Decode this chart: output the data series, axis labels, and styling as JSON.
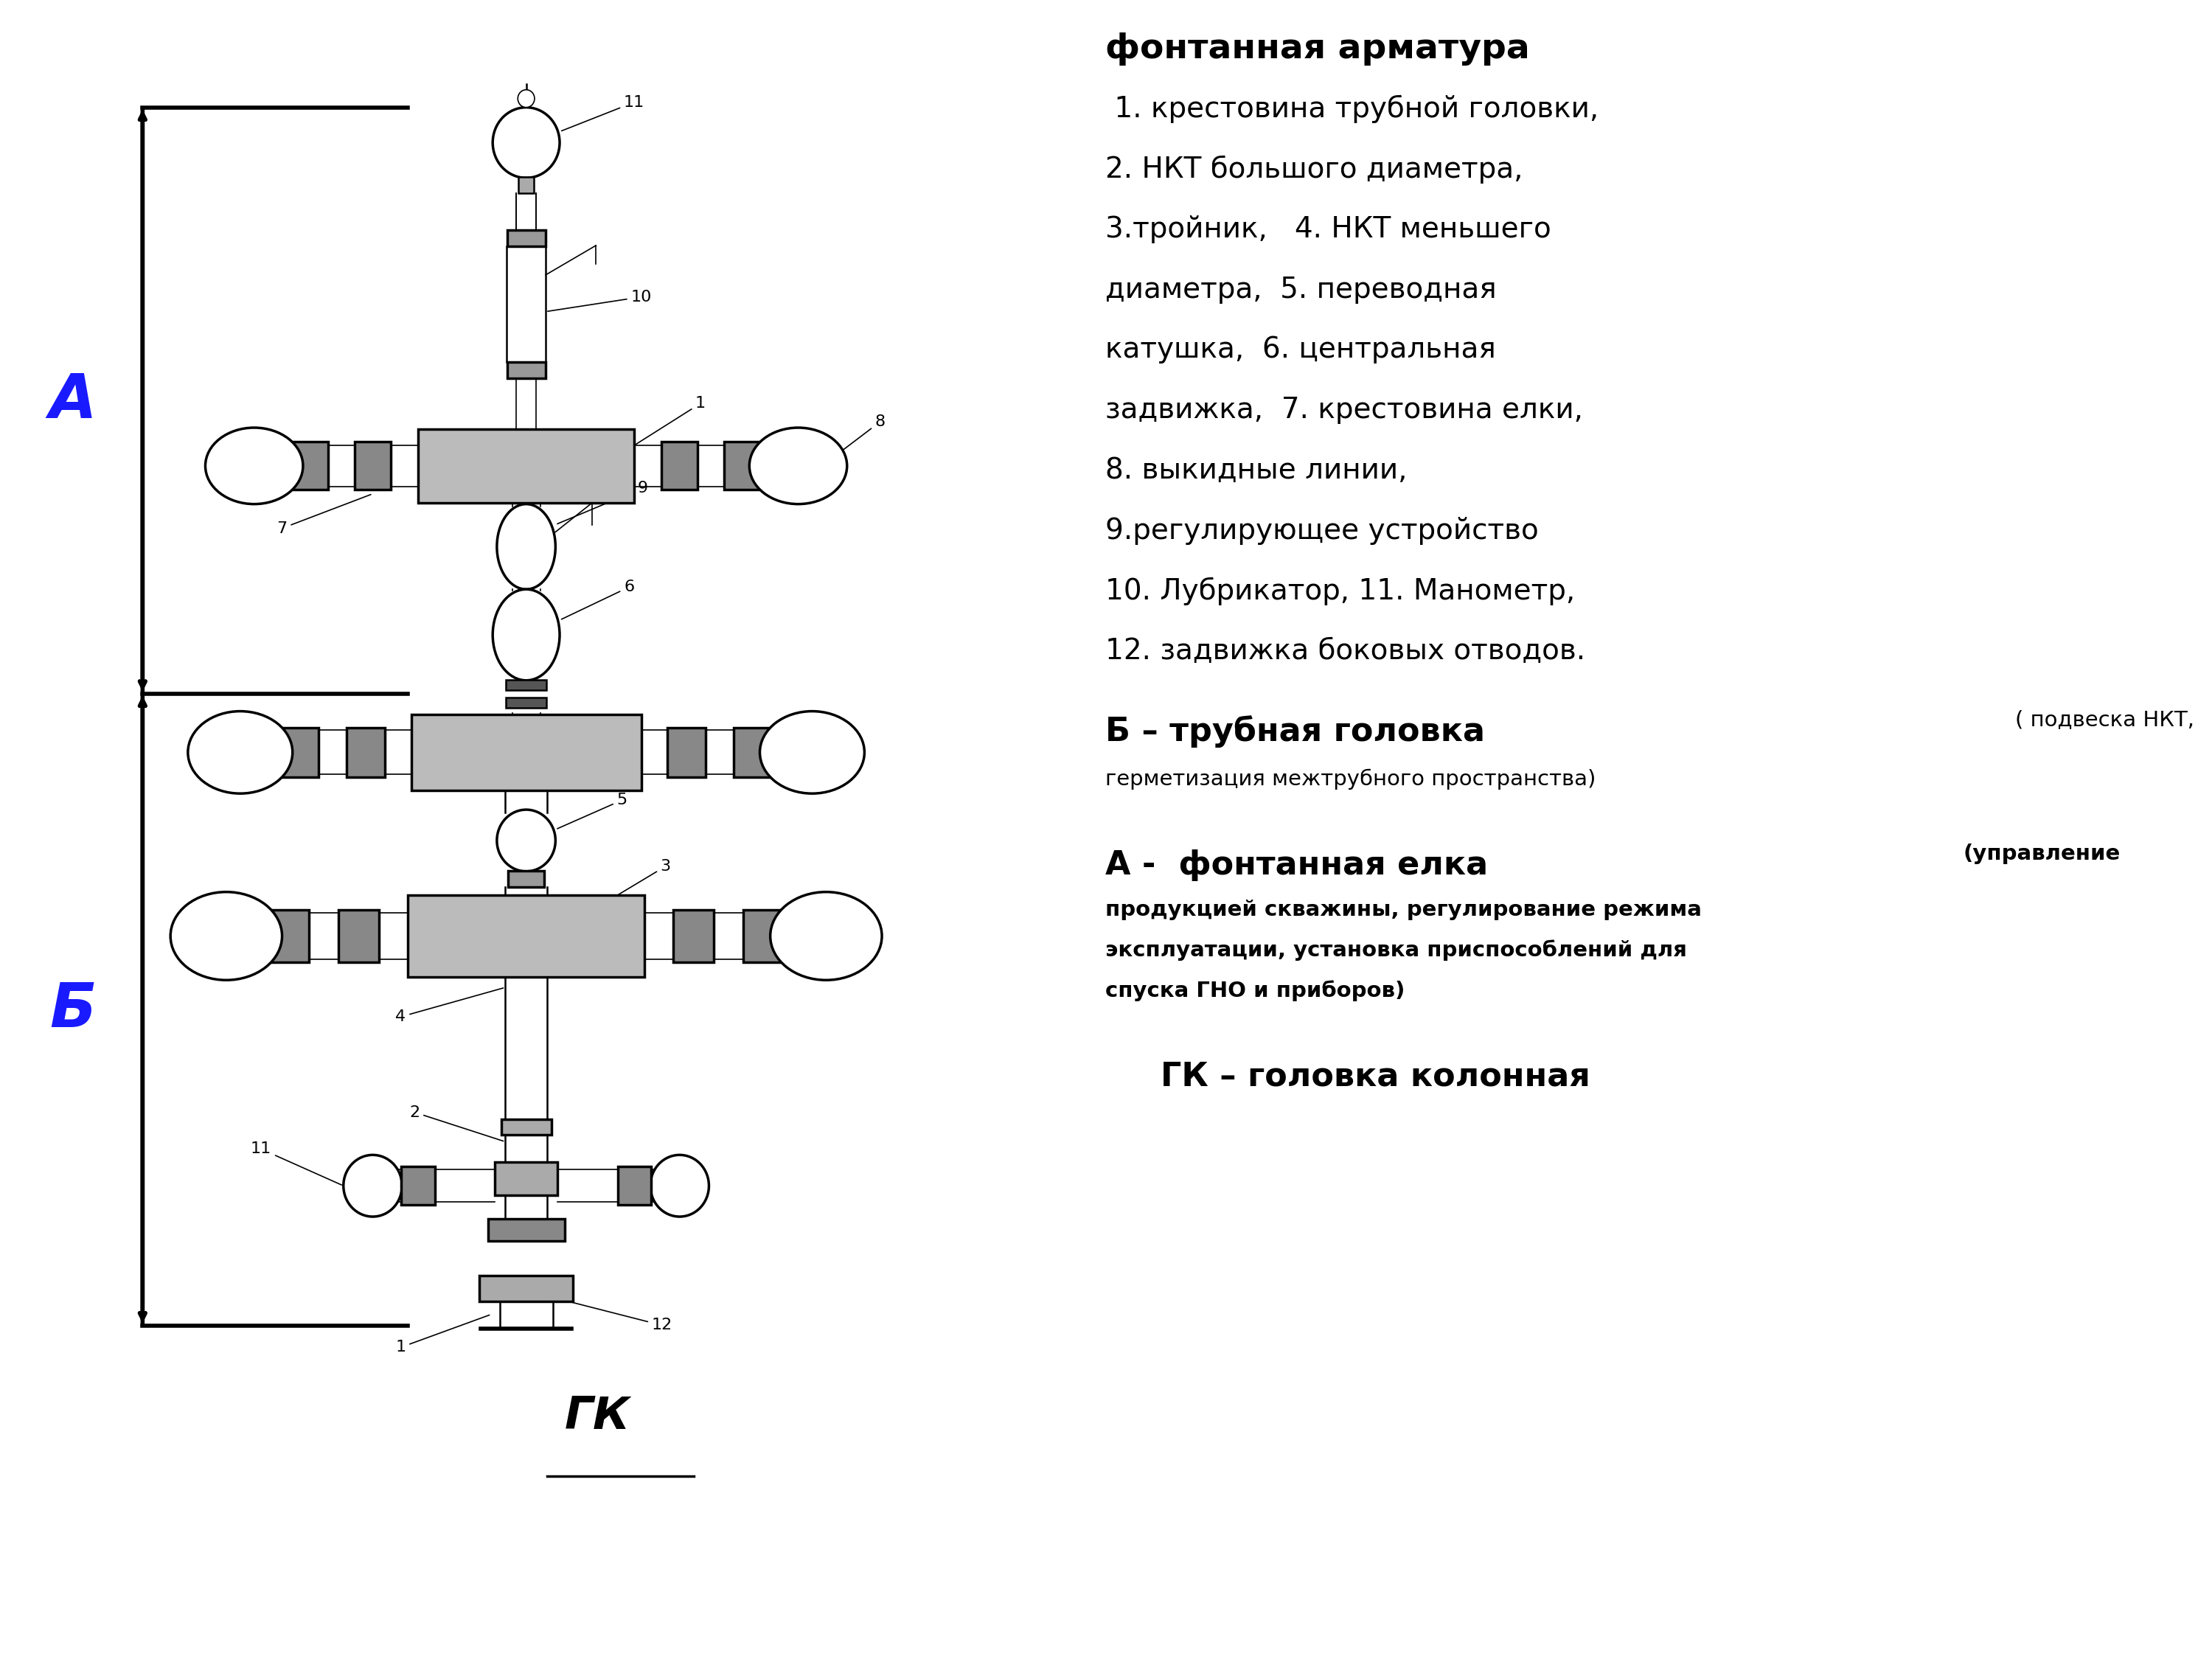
{
  "title": "фонтанная арматура",
  "description_lines": [
    " 1. крестовина трубной головки,",
    "2. НКТ большого диаметра,",
    "3.тройник,   4. НКТ меньшего",
    "диаметра,  5. переводная",
    "катушка,  6. центральная",
    "задвижка,  7. крестовина елки,",
    "8. выкидные линии,",
    "9.регулирующее устройство",
    "10. Лубрикатор, 11. Манометр,",
    "12. задвижка боковых отводов."
  ],
  "label_B_main": "Б – трубная головка",
  "label_B_sub1": "( подвеска НКТ,",
  "label_B_sub2": "герметизация межтрубного пространства)",
  "label_A_main": "А -  фонтанная елка",
  "label_A_sub1": "(управление",
  "label_A_sub2": "продукцией скважины, регулирование режима",
  "label_A_sub3": "эксплуатации, установка приспособлений для",
  "label_A_sub4": "спуска ГНО и приборов)",
  "label_GK": "ГК – головка колонная",
  "label_A_left": "А",
  "label_B_left": "Б",
  "label_GK_diagram": "ГК",
  "bg_color": "#ffffff",
  "text_color": "#000000",
  "title_fontsize": 34,
  "body_fontsize": 28,
  "label_main_fontsize": 32,
  "label_sub_fontsize": 21,
  "dim_label_fontsize": 60,
  "gk_label_fontsize": 44
}
